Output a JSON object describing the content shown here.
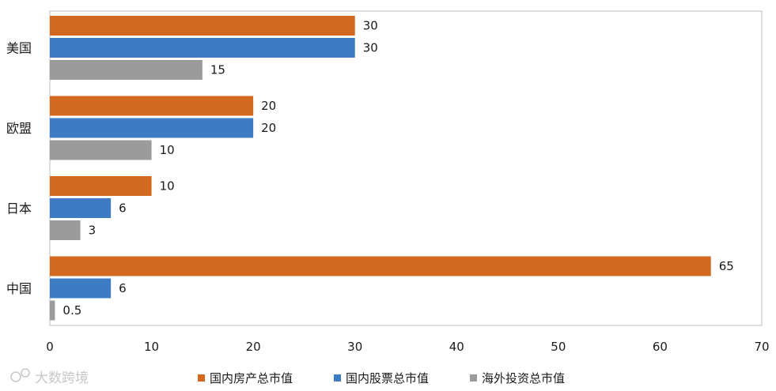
{
  "chart_data": {
    "type": "bar",
    "orientation": "horizontal",
    "categories": [
      "美国",
      "欧盟",
      "日本",
      "中国"
    ],
    "series": [
      {
        "name": "国内房产总市值",
        "values": [
          30,
          20,
          10,
          65
        ],
        "color": "#d2691e"
      },
      {
        "name": "国内股票总市值",
        "values": [
          30,
          20,
          6,
          6
        ],
        "color": "#3d7cc4"
      },
      {
        "name": "海外投资总市值",
        "values": [
          15,
          10,
          3,
          0.5
        ],
        "color": "#9b9b9b"
      }
    ],
    "data_labels": [
      [
        "30",
        "30",
        "15"
      ],
      [
        "20",
        "20",
        "10"
      ],
      [
        "10",
        "6",
        "3"
      ],
      [
        "65",
        "6",
        "0.5"
      ]
    ],
    "xlim": [
      0,
      70
    ],
    "xticks": [
      0,
      10,
      20,
      30,
      40,
      50,
      60,
      70
    ],
    "title": "",
    "xlabel": "",
    "ylabel": "",
    "grid": false,
    "legend_position": "bottom"
  },
  "watermark": {
    "text": "大数跨境",
    "icon": "brand-logo-icon"
  }
}
